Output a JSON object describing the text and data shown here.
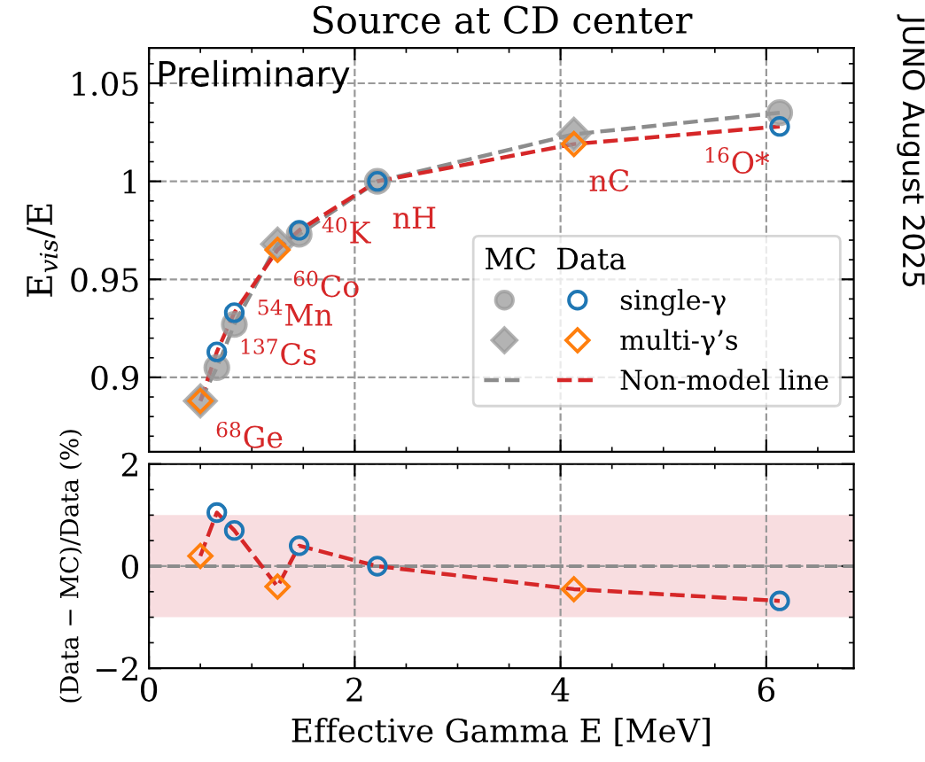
{
  "chart_data": [
    {
      "type": "scatter",
      "title": "Source at CD center",
      "ylabel": "E$_{vis}$/E",
      "xlim": [
        0,
        6.85
      ],
      "xticks": [
        0,
        2,
        4,
        6
      ],
      "ylim": [
        0.862,
        1.068
      ],
      "yticks": [
        0.9,
        0.95,
        1.0,
        1.05
      ],
      "tick_labels": "y",
      "grid": true,
      "legend": "lower right",
      "legend_title": "MC  Data",
      "series": [
        {
          "type": "line",
          "color": "#8c8c8c",
          "line_style": "dashed",
          "marker": "none",
          "x": [
            0.5,
            0.66,
            0.83,
            1.25,
            1.46,
            2.22,
            4.13,
            6.13
          ],
          "values": [
            0.888,
            0.905,
            0.927,
            0.968,
            0.973,
            1.0,
            1.024,
            1.035
          ]
        },
        {
          "type": "line",
          "name": "Non-model line",
          "color": "#d62728",
          "line_style": "dashed",
          "marker": "none",
          "x": [
            0.5,
            0.66,
            0.83,
            1.25,
            1.46,
            2.22,
            4.13,
            6.13
          ],
          "values": [
            0.888,
            0.913,
            0.933,
            0.965,
            0.975,
            1.0,
            1.019,
            1.028
          ]
        },
        {
          "color": "#999999",
          "marker": "circle",
          "x": [
            0.66,
            0.83,
            1.46,
            2.22,
            6.13
          ],
          "values": [
            0.905,
            0.927,
            0.973,
            1.0,
            1.035
          ]
        },
        {
          "color": "#999999",
          "marker": "diamond",
          "x": [
            0.5,
            1.25,
            4.13
          ],
          "values": [
            0.888,
            0.968,
            1.024
          ]
        },
        {
          "name": "single-γ",
          "color": "#1f77b4",
          "marker": "circle",
          "x": [
            0.66,
            0.83,
            1.46,
            2.22,
            6.13
          ],
          "values": [
            0.913,
            0.933,
            0.975,
            1.0,
            1.028
          ]
        },
        {
          "name": "multi-γ’s",
          "color": "#ff7f0e",
          "marker": "diamond",
          "x": [
            0.5,
            1.25,
            4.13
          ],
          "values": [
            0.888,
            0.965,
            1.019
          ]
        }
      ],
      "annotations": [
        "Preliminary",
        "JUNO August 2025",
        {
          "text": "$^{68}$Ge",
          "x": 0.5,
          "y": 0.888
        },
        {
          "text": "$^{137}$Cs",
          "x": 0.66,
          "y": 0.913
        },
        {
          "text": "$^{54}$Mn",
          "x": 0.83,
          "y": 0.933
        },
        {
          "text": "$^{60}$Co",
          "x": 1.25,
          "y": 0.965
        },
        {
          "text": "$^{40}$K",
          "x": 1.46,
          "y": 0.975
        },
        {
          "text": "nH",
          "x": 2.22,
          "y": 1.0
        },
        {
          "text": "nC",
          "x": 4.13,
          "y": 1.019
        },
        {
          "text": "$^{16}$O*",
          "x": 6.13,
          "y": 1.028
        }
      ]
    },
    {
      "type": "scatter",
      "xlabel": "Effective Gamma E [MeV]",
      "ylabel": "(Data − MC)/Data (%)",
      "xlim": [
        0,
        6.85
      ],
      "xticks": [
        0,
        2,
        4,
        6
      ],
      "ylim": [
        -2,
        2
      ],
      "yticks": [
        -2,
        0,
        2
      ],
      "grid": true,
      "bands": [
        {
          "axis": "y",
          "from": -1,
          "to": 1,
          "color": "#f4c6cb"
        }
      ],
      "ref_lines": [
        {
          "axis": "y",
          "value": 0,
          "color": "#8c8c8c",
          "line_style": "dashed"
        }
      ],
      "series": [
        {
          "type": "line",
          "color": "#d62728",
          "line_style": "dashed",
          "marker": "none",
          "x": [
            0.5,
            0.66,
            0.83,
            1.25,
            1.46,
            2.22,
            4.13,
            6.13
          ],
          "values": [
            0.2,
            1.05,
            0.7,
            -0.4,
            0.4,
            0.0,
            -0.45,
            -0.68
          ]
        },
        {
          "color": "#1f77b4",
          "marker": "circle",
          "x": [
            0.66,
            0.83,
            1.46,
            2.22,
            6.13
          ],
          "values": [
            1.05,
            0.7,
            0.4,
            0.0,
            -0.68
          ]
        },
        {
          "color": "#ff7f0e",
          "marker": "diamond",
          "x": [
            0.5,
            1.25,
            4.13
          ],
          "values": [
            0.2,
            -0.4,
            -0.45
          ]
        }
      ]
    }
  ]
}
